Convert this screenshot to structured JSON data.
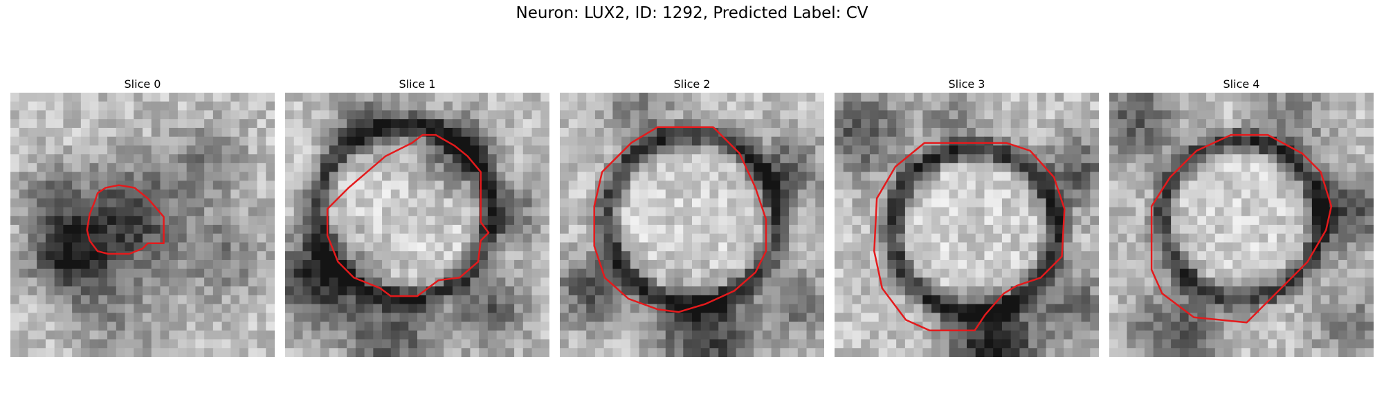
{
  "figure": {
    "title": "Neuron: LUX2, ID: 1292, Predicted Label: CV"
  },
  "panels": [
    {
      "title": "Slice 0",
      "contour": [
        [
          0.36,
          0.36
        ],
        [
          0.33,
          0.38
        ],
        [
          0.32,
          0.41
        ],
        [
          0.3,
          0.46
        ],
        [
          0.29,
          0.52
        ],
        [
          0.3,
          0.56
        ],
        [
          0.33,
          0.6
        ],
        [
          0.37,
          0.61
        ],
        [
          0.45,
          0.61
        ],
        [
          0.5,
          0.59
        ],
        [
          0.52,
          0.57
        ],
        [
          0.58,
          0.57
        ],
        [
          0.58,
          0.47
        ],
        [
          0.52,
          0.4
        ],
        [
          0.47,
          0.36
        ],
        [
          0.41,
          0.35
        ]
      ],
      "dark": [
        [
          0.45,
          0.47,
          0.14,
          0.7
        ],
        [
          0.22,
          0.62,
          0.1,
          0.8
        ],
        [
          0.15,
          0.4,
          0.08,
          0.45
        ],
        [
          0.75,
          0.25,
          0.1,
          0.35
        ],
        [
          0.8,
          0.62,
          0.12,
          0.35
        ],
        [
          0.4,
          0.85,
          0.12,
          0.3
        ]
      ]
    },
    {
      "title": "Slice 1",
      "contour": [
        [
          0.52,
          0.16
        ],
        [
          0.48,
          0.19
        ],
        [
          0.38,
          0.24
        ],
        [
          0.24,
          0.36
        ],
        [
          0.16,
          0.44
        ],
        [
          0.16,
          0.54
        ],
        [
          0.2,
          0.64
        ],
        [
          0.26,
          0.7
        ],
        [
          0.36,
          0.74
        ],
        [
          0.4,
          0.77
        ],
        [
          0.5,
          0.77
        ],
        [
          0.58,
          0.71
        ],
        [
          0.66,
          0.7
        ],
        [
          0.73,
          0.64
        ],
        [
          0.74,
          0.56
        ],
        [
          0.77,
          0.53
        ],
        [
          0.74,
          0.49
        ],
        [
          0.74,
          0.3
        ],
        [
          0.69,
          0.24
        ],
        [
          0.64,
          0.2
        ],
        [
          0.57,
          0.16
        ]
      ],
      "dark": [
        [
          0.45,
          0.45,
          0.33,
          -0.55
        ],
        [
          0.12,
          0.7,
          0.12,
          0.8
        ],
        [
          0.65,
          0.22,
          0.1,
          0.6
        ],
        [
          0.4,
          0.92,
          0.12,
          0.55
        ],
        [
          0.78,
          0.82,
          0.1,
          0.5
        ],
        [
          0.3,
          0.12,
          0.1,
          0.4
        ],
        [
          0.85,
          0.45,
          0.08,
          0.45
        ]
      ]
    },
    {
      "title": "Slice 2",
      "contour": [
        [
          0.37,
          0.13
        ],
        [
          0.27,
          0.19
        ],
        [
          0.16,
          0.3
        ],
        [
          0.13,
          0.43
        ],
        [
          0.13,
          0.58
        ],
        [
          0.17,
          0.7
        ],
        [
          0.26,
          0.78
        ],
        [
          0.37,
          0.82
        ],
        [
          0.45,
          0.83
        ],
        [
          0.55,
          0.8
        ],
        [
          0.66,
          0.75
        ],
        [
          0.74,
          0.68
        ],
        [
          0.78,
          0.6
        ],
        [
          0.78,
          0.48
        ],
        [
          0.74,
          0.36
        ],
        [
          0.68,
          0.23
        ],
        [
          0.58,
          0.13
        ],
        [
          0.47,
          0.13
        ]
      ],
      "dark": [
        [
          0.5,
          0.48,
          0.32,
          -0.6
        ],
        [
          0.55,
          0.92,
          0.12,
          0.75
        ],
        [
          0.12,
          0.75,
          0.1,
          0.55
        ],
        [
          0.85,
          0.3,
          0.1,
          0.5
        ],
        [
          0.3,
          0.08,
          0.1,
          0.35
        ],
        [
          0.9,
          0.8,
          0.09,
          0.45
        ]
      ]
    },
    {
      "title": "Slice 3",
      "contour": [
        [
          0.34,
          0.19
        ],
        [
          0.23,
          0.28
        ],
        [
          0.16,
          0.4
        ],
        [
          0.15,
          0.6
        ],
        [
          0.18,
          0.74
        ],
        [
          0.27,
          0.86
        ],
        [
          0.36,
          0.9
        ],
        [
          0.53,
          0.9
        ],
        [
          0.57,
          0.84
        ],
        [
          0.64,
          0.76
        ],
        [
          0.69,
          0.73
        ],
        [
          0.78,
          0.7
        ],
        [
          0.86,
          0.62
        ],
        [
          0.87,
          0.44
        ],
        [
          0.83,
          0.32
        ],
        [
          0.74,
          0.22
        ],
        [
          0.65,
          0.19
        ],
        [
          0.48,
          0.19
        ]
      ],
      "dark": [
        [
          0.53,
          0.52,
          0.31,
          -0.65
        ],
        [
          0.6,
          0.96,
          0.12,
          0.85
        ],
        [
          0.1,
          0.15,
          0.12,
          0.55
        ],
        [
          0.92,
          0.3,
          0.1,
          0.5
        ],
        [
          0.9,
          0.8,
          0.1,
          0.45
        ],
        [
          0.45,
          0.08,
          0.08,
          0.3
        ]
      ]
    },
    {
      "title": "Slice 4",
      "contour": [
        [
          0.46,
          0.16
        ],
        [
          0.33,
          0.22
        ],
        [
          0.23,
          0.32
        ],
        [
          0.16,
          0.43
        ],
        [
          0.16,
          0.67
        ],
        [
          0.2,
          0.76
        ],
        [
          0.32,
          0.85
        ],
        [
          0.52,
          0.87
        ],
        [
          0.62,
          0.77
        ],
        [
          0.75,
          0.64
        ],
        [
          0.82,
          0.52
        ],
        [
          0.84,
          0.43
        ],
        [
          0.8,
          0.3
        ],
        [
          0.73,
          0.23
        ],
        [
          0.6,
          0.16
        ]
      ],
      "dark": [
        [
          0.5,
          0.48,
          0.3,
          -0.6
        ],
        [
          0.9,
          0.45,
          0.1,
          0.65
        ],
        [
          0.25,
          0.9,
          0.12,
          0.55
        ],
        [
          0.1,
          0.1,
          0.12,
          0.5
        ],
        [
          0.7,
          0.08,
          0.1,
          0.35
        ],
        [
          0.9,
          0.88,
          0.09,
          0.4
        ]
      ]
    }
  ]
}
